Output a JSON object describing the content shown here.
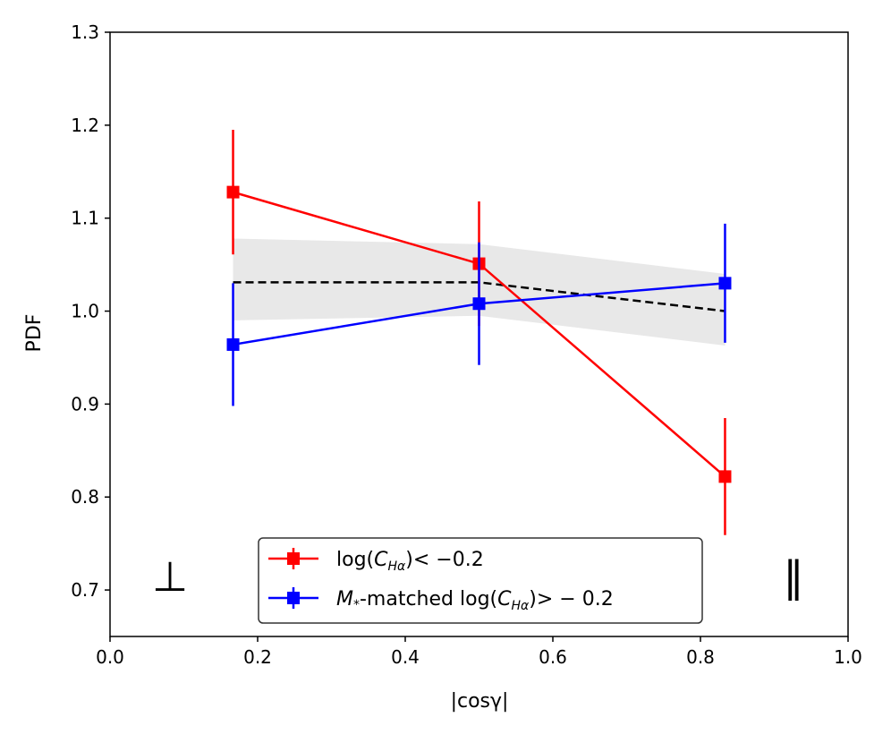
{
  "chart_data": {
    "type": "line",
    "xlabel": "|cosγ|",
    "ylabel": "PDF",
    "xlim": [
      0.0,
      1.0
    ],
    "ylim": [
      0.65,
      1.3
    ],
    "x_ticks": [
      "0.0",
      "0.2",
      "0.4",
      "0.6",
      "0.8",
      "1.0"
    ],
    "y_ticks": [
      "0.7",
      "0.8",
      "0.9",
      "1.0",
      "1.1",
      "1.2",
      "1.3"
    ],
    "grid": false,
    "legend_position": "bottom-center",
    "x": [
      0.1667,
      0.5,
      0.8333
    ],
    "series": [
      {
        "name": "log(C_Hα) < −0.2",
        "color": "#ff0000",
        "marker": "square",
        "values": [
          1.128,
          1.051,
          0.822
        ],
        "yerr": [
          0.067,
          0.067,
          0.063
        ]
      },
      {
        "name": "M*-matched log(C_Hα) > −0.2",
        "color": "#0000ff",
        "marker": "square",
        "values": [
          0.964,
          1.008,
          1.03
        ],
        "yerr": [
          0.066,
          0.066,
          0.064
        ]
      }
    ],
    "reference": {
      "style": "dashed",
      "color": "#000000",
      "values": [
        1.031,
        1.031,
        1.0
      ],
      "band_lower": [
        0.99,
        0.995,
        0.963
      ],
      "band_upper": [
        1.078,
        1.072,
        1.04
      ],
      "band_color": "#e8e8e8"
    },
    "annotations": {
      "left_symbol": "⊥",
      "right_symbol": "‖"
    },
    "legend": [
      {
        "pre": "log(",
        "italic": "C",
        "sub": "Hα",
        "post": ") < −0.2"
      },
      {
        "italic": "M",
        "italic_sub": "*",
        "pre2": "-matched log(",
        "italic2": "C",
        "sub2": "Hα",
        "post2": ") > − 0.2"
      }
    ]
  }
}
